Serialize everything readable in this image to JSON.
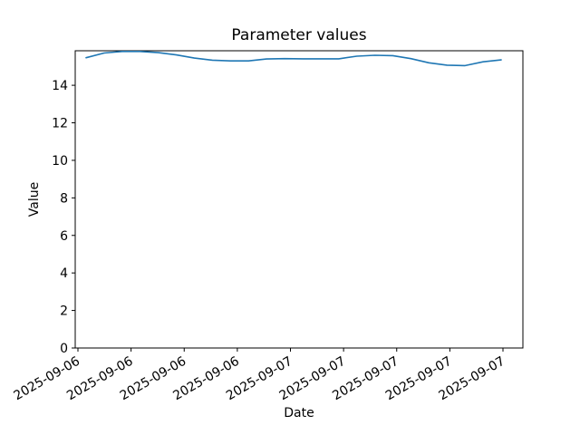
{
  "figure": {
    "title": "Parameter values",
    "xlabel": "Date",
    "ylabel": "Value"
  },
  "chart_data": {
    "type": "line",
    "title": "Parameter values",
    "xlabel": "Date",
    "ylabel": "Value",
    "x_tick_labels": [
      "2025-09-06",
      "2025-09-06",
      "2025-09-06",
      "2025-09-06",
      "2025-09-07",
      "2025-09-07",
      "2025-09-07",
      "2025-09-07",
      "2025-09-07"
    ],
    "x_tick_rotation_deg": -30,
    "y_ticks": [
      0,
      2,
      4,
      6,
      8,
      10,
      12,
      14
    ],
    "y_tick_labels": [
      "0",
      "2",
      "4",
      "6",
      "8",
      "10",
      "12",
      "14"
    ],
    "ylim": [
      0,
      15.84
    ],
    "grid": false,
    "legend": "none",
    "background_color": "#ffffff",
    "spine_color": "#000000",
    "text_color": "#000000",
    "series": [
      {
        "name": "Parameter values",
        "color": "#1f77b4",
        "x_start_label": "2025-09-06",
        "x_end_label": "2025-09-07",
        "values": [
          15.47,
          15.72,
          15.8,
          15.8,
          15.74,
          15.62,
          15.45,
          15.34,
          15.3,
          15.3,
          15.4,
          15.42,
          15.41,
          15.41,
          15.41,
          15.55,
          15.6,
          15.58,
          15.42,
          15.2,
          15.07,
          15.05,
          15.25,
          15.35
        ]
      }
    ]
  }
}
